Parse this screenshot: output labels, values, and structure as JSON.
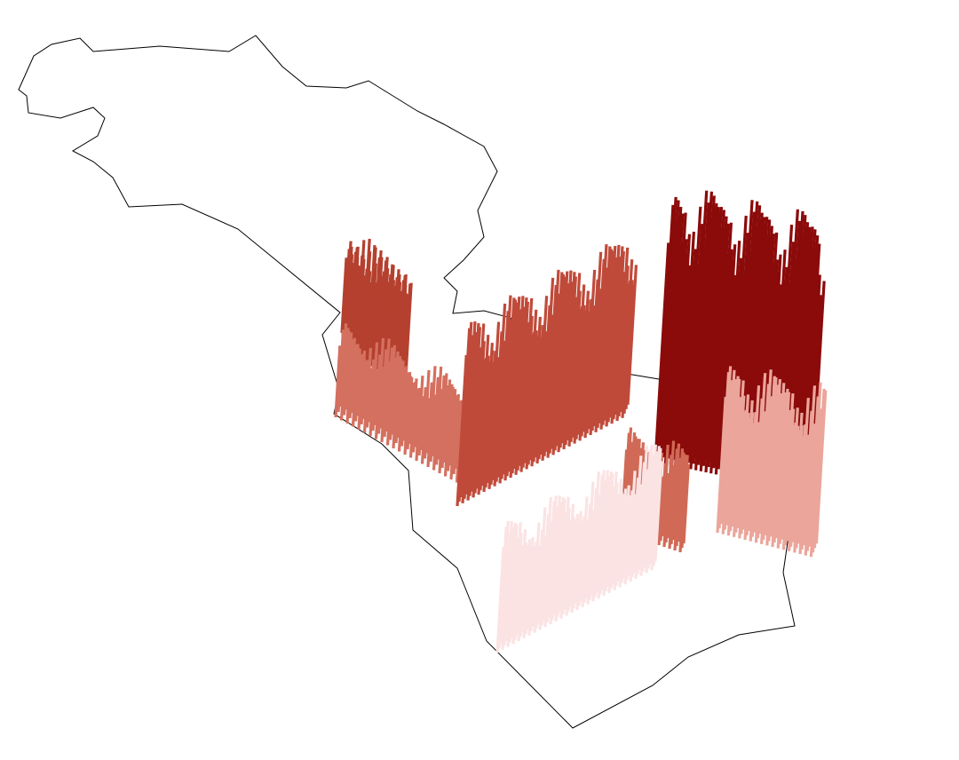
{
  "map": {
    "regions": [
      {
        "color": "#b5402f"
      },
      {
        "color": "#d4705f"
      },
      {
        "color": "#c04a3a"
      },
      {
        "color": "#8b0a0a"
      },
      {
        "color": "#d06a56"
      },
      {
        "color": "#fbe3e3"
      },
      {
        "color": "#eba59b"
      }
    ]
  }
}
